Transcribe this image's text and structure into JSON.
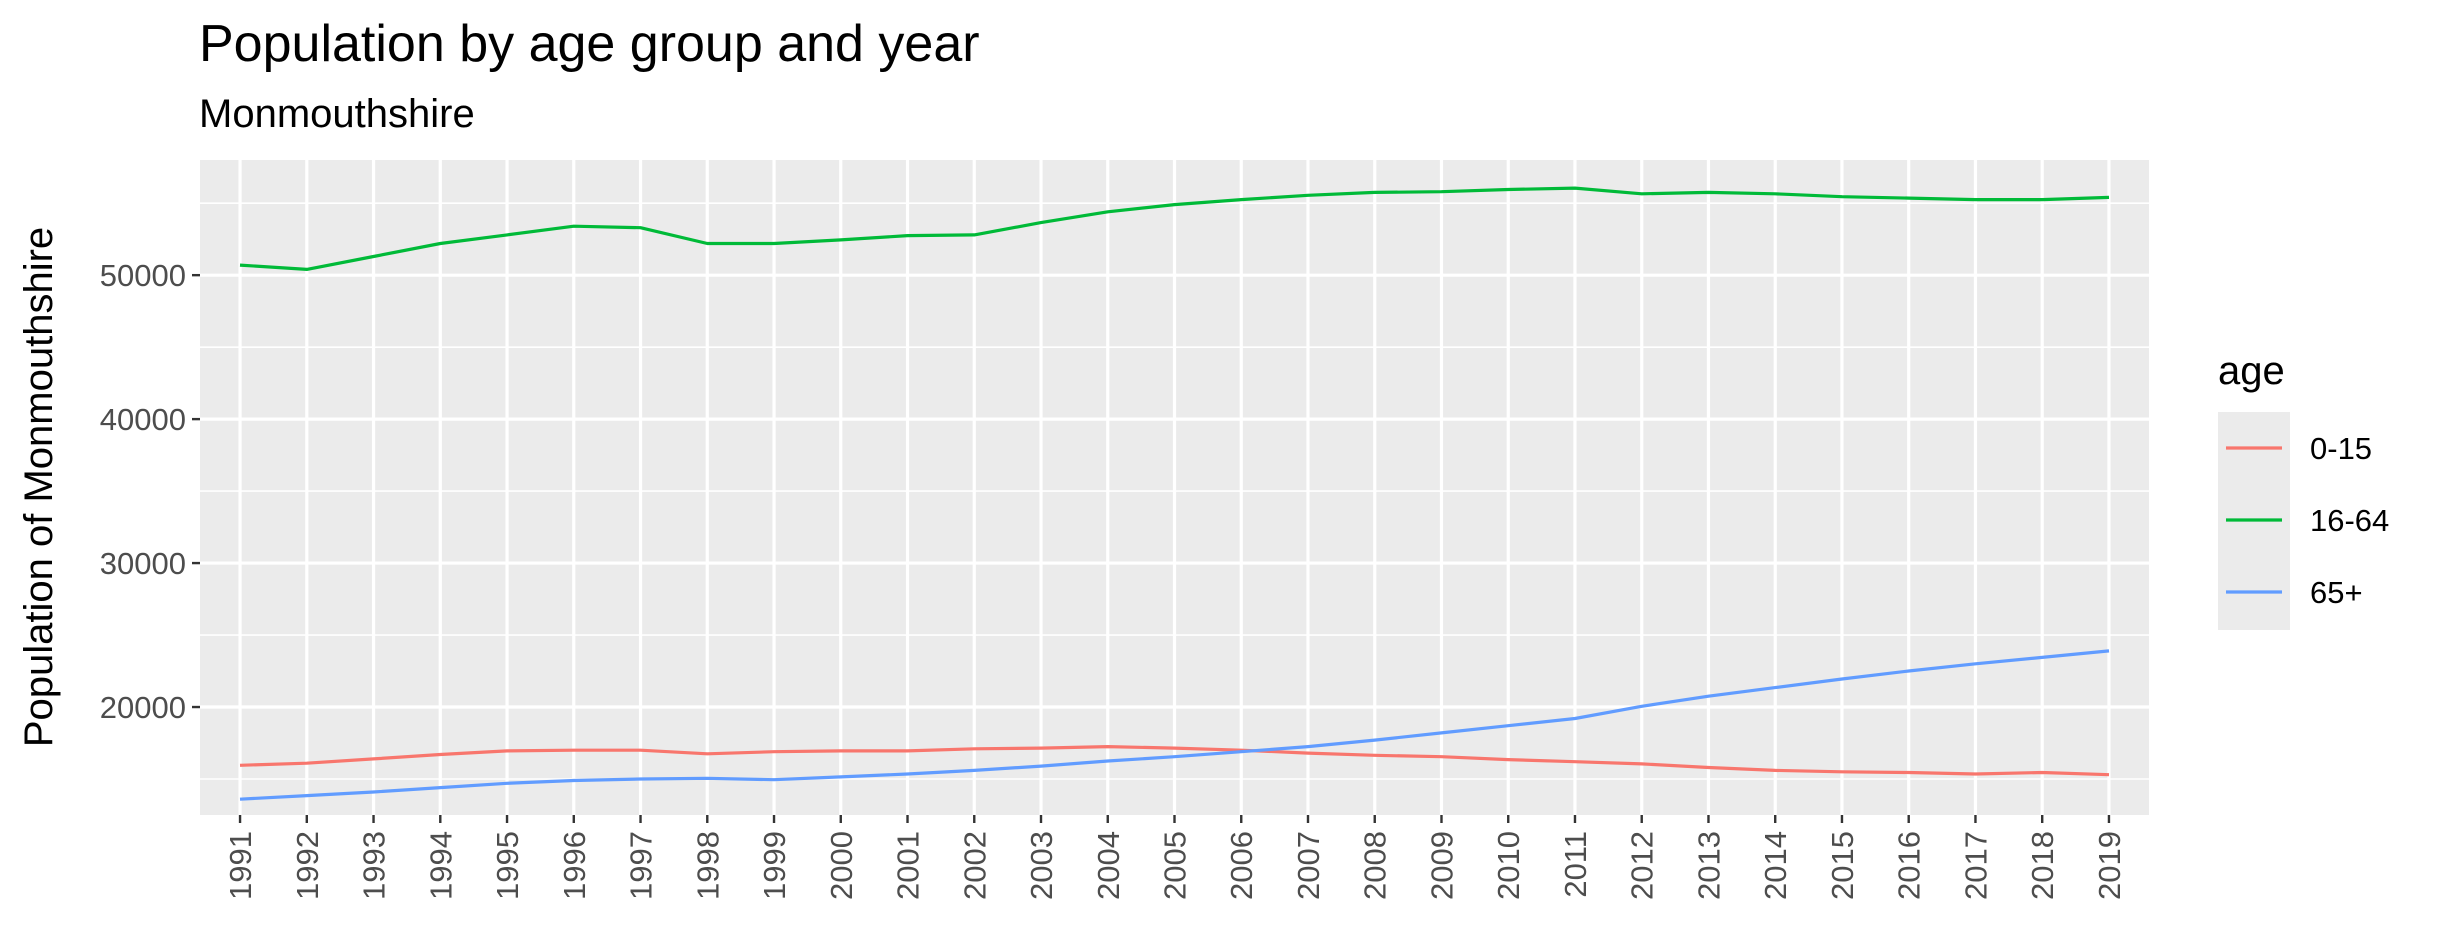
{
  "chart_data": {
    "type": "line",
    "title": "Population by age group and year",
    "subtitle": "Monmouthshire",
    "xlabel": "",
    "ylabel": "Population of Monmouthshire",
    "x": [
      1991,
      1992,
      1993,
      1994,
      1995,
      1996,
      1997,
      1998,
      1999,
      2000,
      2001,
      2002,
      2003,
      2004,
      2005,
      2006,
      2007,
      2008,
      2009,
      2010,
      2011,
      2012,
      2013,
      2014,
      2015,
      2016,
      2017,
      2018,
      2019
    ],
    "xlim": [
      1990.4,
      2019.6
    ],
    "ylim": [
      12500,
      58000
    ],
    "yticks": [
      20000,
      30000,
      40000,
      50000
    ],
    "grid": true,
    "legend_title": "age",
    "legend_position": "right",
    "series": [
      {
        "name": "0-15",
        "color": "#F8766D",
        "values": [
          15950,
          16100,
          16400,
          16700,
          16950,
          17000,
          17000,
          16750,
          16900,
          16950,
          16950,
          17100,
          17150,
          17250,
          17150,
          17000,
          16800,
          16650,
          16550,
          16350,
          16200,
          16050,
          15800,
          15600,
          15500,
          15450,
          15350,
          15450,
          15300
        ]
      },
      {
        "name": "16-64",
        "color": "#00BA38",
        "values": [
          50700,
          50400,
          51300,
          52200,
          52800,
          53400,
          53300,
          52200,
          52200,
          52450,
          52750,
          52800,
          53650,
          54400,
          54900,
          55250,
          55550,
          55750,
          55800,
          55950,
          56050,
          55650,
          55750,
          55650,
          55450,
          55350,
          55250,
          55250,
          55400
        ]
      },
      {
        "name": "65+",
        "color": "#619CFF",
        "values": [
          13600,
          13850,
          14100,
          14400,
          14700,
          14900,
          15000,
          15050,
          14950,
          15150,
          15350,
          15600,
          15900,
          16250,
          16550,
          16900,
          17250,
          17700,
          18200,
          18700,
          19200,
          20050,
          20750,
          21350,
          21950,
          22500,
          23000,
          23450,
          23900
        ]
      }
    ]
  }
}
